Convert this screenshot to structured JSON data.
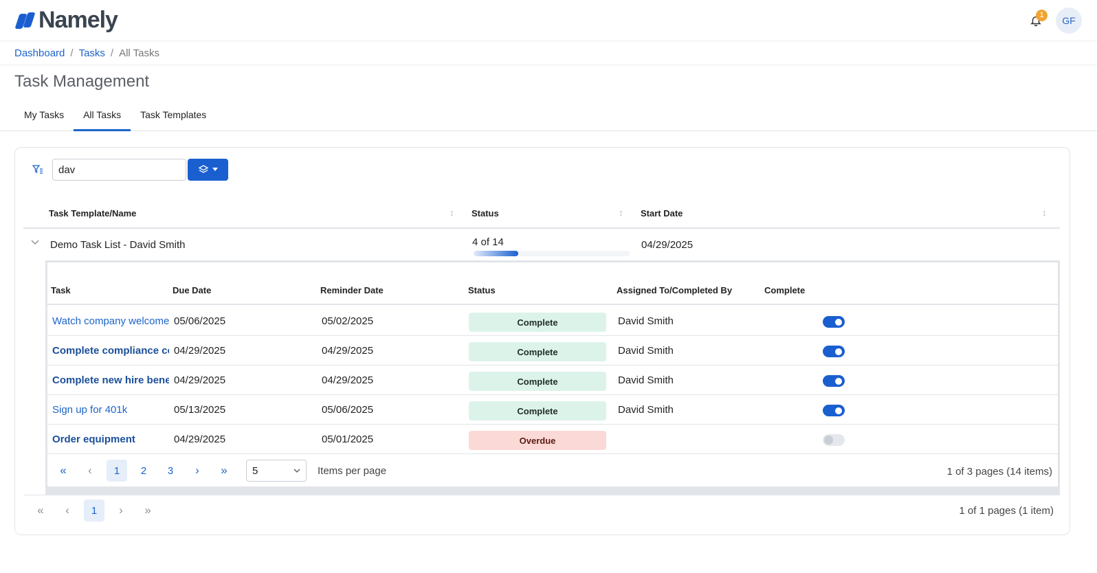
{
  "header": {
    "logo_text": "Namely",
    "notification_count": "1",
    "avatar_initials": "GF"
  },
  "breadcrumb": {
    "items": [
      "Dashboard",
      "Tasks"
    ],
    "current": "All Tasks"
  },
  "page_title": "Task Management",
  "tabs": [
    {
      "label": "My Tasks",
      "active": false
    },
    {
      "label": "All Tasks",
      "active": true
    },
    {
      "label": "Task Templates",
      "active": false
    }
  ],
  "search": {
    "value": "dav",
    "placeholder": ""
  },
  "outer_table": {
    "columns": [
      "Task Template/Name",
      "Status",
      "Start Date"
    ],
    "row": {
      "name": "Demo Task List - David Smith",
      "progress_label": "4 of 14",
      "progress_fraction": 0.286,
      "start_date": "04/29/2025"
    }
  },
  "inner_table": {
    "columns": [
      "Task",
      "Due Date",
      "Reminder Date",
      "Status",
      "Assigned To/Completed By",
      "Complete"
    ],
    "rows": [
      {
        "task": "Watch company welcome video",
        "due": "05/06/2025",
        "reminder": "05/02/2025",
        "status": "Complete",
        "assigned": "David Smith",
        "complete": true
      },
      {
        "task": "Complete compliance courses",
        "due": "04/29/2025",
        "reminder": "04/29/2025",
        "status": "Complete",
        "assigned": "David Smith",
        "complete": true
      },
      {
        "task": "Complete new hire benefits enrollment",
        "due": "04/29/2025",
        "reminder": "04/29/2025",
        "status": "Complete",
        "assigned": "David Smith",
        "complete": true
      },
      {
        "task": "Sign up for 401k",
        "due": "05/13/2025",
        "reminder": "05/06/2025",
        "status": "Complete",
        "assigned": "David Smith",
        "complete": true
      },
      {
        "task": "Order equipment",
        "due": "04/29/2025",
        "reminder": "05/01/2025",
        "status": "Overdue",
        "assigned": "",
        "complete": false
      }
    ]
  },
  "inner_pager": {
    "pages": [
      "1",
      "2",
      "3"
    ],
    "current": "1",
    "per_page": "5",
    "per_page_label": "Items per page",
    "info": "1 of 3 pages (14 items)"
  },
  "outer_pager": {
    "pages": [
      "1"
    ],
    "current": "1",
    "info": "1 of 1 pages (1 item)"
  },
  "colors": {
    "primary": "#1a5fd0",
    "link": "#1c64c9",
    "complete_bg": "#dcf3ea",
    "overdue_bg": "#fbd9d6",
    "badge": "#f0a434"
  }
}
